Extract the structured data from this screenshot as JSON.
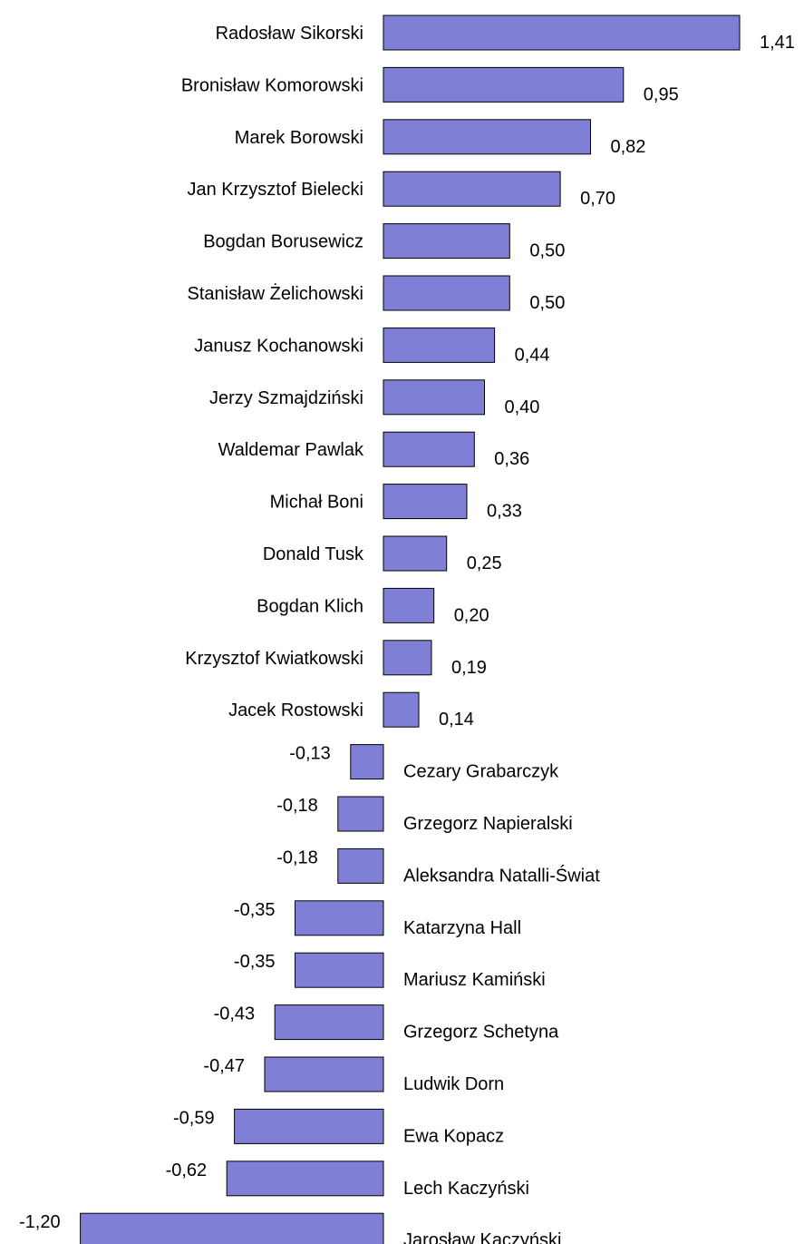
{
  "chart_data": {
    "type": "bar",
    "orientation": "horizontal",
    "title": "",
    "xlabel": "",
    "ylabel": "",
    "xlim": [
      -1.2,
      1.41
    ],
    "grid": false,
    "legend": "none",
    "bar_color": "#7f7fd5",
    "bar_edge_color": "#000000",
    "value_format": "comma-decimal",
    "categories": [
      "Radosław Sikorski",
      "Bronisław Komorowski",
      "Marek Borowski",
      "Jan Krzysztof Bielecki",
      "Bogdan Borusewicz",
      "Stanisław Żelichowski",
      "Janusz Kochanowski",
      "Jerzy Szmajdziński",
      "Waldemar Pawlak",
      "Michał Boni",
      "Donald Tusk",
      "Bogdan Klich",
      "Krzysztof Kwiatkowski",
      "Jacek Rostowski",
      "Cezary Grabarczyk",
      "Grzegorz Napieralski",
      "Aleksandra Natalli-Świat",
      "Katarzyna Hall",
      "Mariusz Kamiński",
      "Grzegorz Schetyna",
      "Ludwik Dorn",
      "Ewa Kopacz",
      "Lech Kaczyński",
      "Jarosław Kaczyński"
    ],
    "values": [
      1.41,
      0.95,
      0.82,
      0.7,
      0.5,
      0.5,
      0.44,
      0.4,
      0.36,
      0.33,
      0.25,
      0.2,
      0.19,
      0.14,
      -0.13,
      -0.18,
      -0.18,
      -0.35,
      -0.35,
      -0.43,
      -0.47,
      -0.59,
      -0.62,
      -1.2
    ],
    "value_labels": [
      "1,41",
      "0,95",
      "0,82",
      "0,70",
      "0,50",
      "0,50",
      "0,44",
      "0,40",
      "0,36",
      "0,33",
      "0,25",
      "0,20",
      "0,19",
      "0,14",
      "-0,13",
      "-0,18",
      "-0,18",
      "-0,35",
      "-0,35",
      "-0,43",
      "-0,47",
      "-0,59",
      "-0,62",
      "-1,20"
    ]
  }
}
